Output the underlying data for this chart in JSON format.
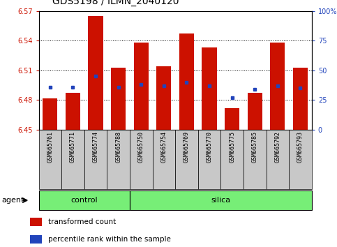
{
  "title": "GDS5198 / ILMN_2040120",
  "samples": [
    "GSM665761",
    "GSM665771",
    "GSM665774",
    "GSM665788",
    "GSM665750",
    "GSM665754",
    "GSM665769",
    "GSM665770",
    "GSM665775",
    "GSM665785",
    "GSM665792",
    "GSM665793"
  ],
  "n_control": 4,
  "n_silica": 8,
  "bar_values": [
    6.482,
    6.487,
    6.565,
    6.513,
    6.538,
    6.514,
    6.547,
    6.533,
    6.472,
    6.487,
    6.538,
    6.513
  ],
  "percentile_ranks": [
    36,
    36,
    45,
    36,
    38,
    37,
    40,
    37,
    27,
    34,
    37,
    35
  ],
  "baseline": 6.45,
  "ylim_left": [
    6.45,
    6.57
  ],
  "ylim_right": [
    0,
    100
  ],
  "yticks_left": [
    6.45,
    6.48,
    6.51,
    6.54,
    6.57
  ],
  "ytick_labels_left": [
    "6.45",
    "6.48",
    "6.51",
    "6.54",
    "6.57"
  ],
  "yticks_right": [
    0,
    25,
    50,
    75,
    100
  ],
  "ytick_labels_right": [
    "0",
    "25",
    "50",
    "75",
    "100%"
  ],
  "dotted_lines": [
    6.48,
    6.51,
    6.54
  ],
  "bar_color": "#cc1100",
  "blue_color": "#2244bb",
  "group_bg_color": "#77ee77",
  "tick_bg_color": "#c8c8c8",
  "group_control_label": "control",
  "group_silica_label": "silica",
  "agent_label": "agent",
  "legend_transformed": "transformed count",
  "legend_percentile": "percentile rank within the sample",
  "bar_width": 0.65,
  "title_fontsize": 10,
  "tick_fontsize": 7,
  "sample_fontsize": 6,
  "group_fontsize": 8,
  "legend_fontsize": 7.5
}
